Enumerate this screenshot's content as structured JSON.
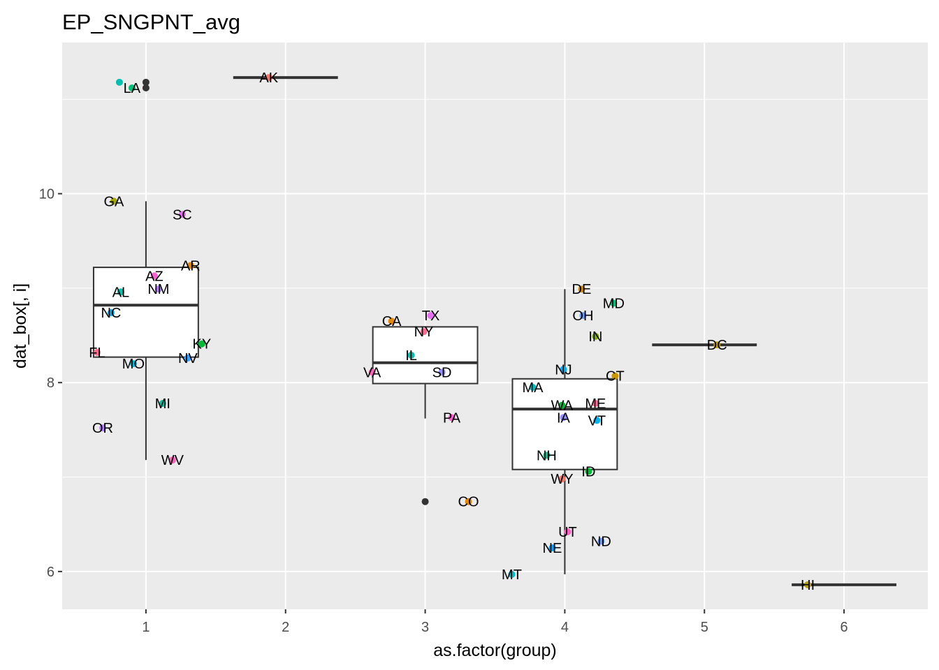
{
  "chart_data": {
    "type": "box",
    "title": "EP_SNGPNT_avg",
    "xlabel": "as.factor(group)",
    "ylabel": "dat_box[, i]",
    "xlim": [
      0.4,
      6.6
    ],
    "ylim": [
      5.6,
      11.6
    ],
    "x_ticks": [
      1,
      2,
      3,
      4,
      5,
      6
    ],
    "y_ticks": [
      6,
      8,
      10
    ],
    "grid": true,
    "legend": "none",
    "boxes": [
      {
        "group": 1,
        "q1": 8.27,
        "median": 8.82,
        "q3": 9.22,
        "whisker_low": 7.18,
        "whisker_high": 9.92,
        "outliers": [
          11.18,
          11.12
        ]
      },
      {
        "group": 2,
        "q1": 11.23,
        "median": 11.23,
        "q3": 11.23,
        "whisker_low": 11.23,
        "whisker_high": 11.23,
        "outliers": []
      },
      {
        "group": 3,
        "q1": 7.99,
        "median": 8.21,
        "q3": 8.59,
        "whisker_low": 7.62,
        "whisker_high": 8.59,
        "outliers": [
          6.74
        ]
      },
      {
        "group": 4,
        "q1": 7.08,
        "median": 7.72,
        "q3": 8.04,
        "whisker_low": 5.97,
        "whisker_high": 8.99,
        "outliers": []
      },
      {
        "group": 5,
        "q1": 8.4,
        "median": 8.4,
        "q3": 8.4,
        "whisker_low": 8.4,
        "whisker_high": 8.4,
        "outliers": []
      },
      {
        "group": 6,
        "q1": 5.86,
        "median": 5.86,
        "q3": 5.86,
        "whisker_low": 5.86,
        "whisker_high": 5.86,
        "outliers": []
      }
    ],
    "points": [
      {
        "label": "LA",
        "x": 0.9,
        "y": 11.12,
        "color": "#00BF7D"
      },
      {
        "label": "",
        "x": 0.81,
        "y": 11.18,
        "color": "#00BFB0"
      },
      {
        "label": "AK",
        "x": 1.88,
        "y": 11.23,
        "color": "#F8766D"
      },
      {
        "label": "GA",
        "x": 0.77,
        "y": 9.92,
        "color": "#A3A500"
      },
      {
        "label": "SC",
        "x": 1.26,
        "y": 9.78,
        "color": "#E76BF3"
      },
      {
        "label": "AR",
        "x": 1.32,
        "y": 9.24,
        "color": "#E58700"
      },
      {
        "label": "AZ",
        "x": 1.06,
        "y": 9.13,
        "color": "#FD61D1"
      },
      {
        "label": "AL",
        "x": 0.82,
        "y": 8.96,
        "color": "#00C0AF"
      },
      {
        "label": "NM",
        "x": 1.09,
        "y": 8.99,
        "color": "#B983FF"
      },
      {
        "label": "NC",
        "x": 0.75,
        "y": 8.74,
        "color": "#00B0F6"
      },
      {
        "label": "KY",
        "x": 1.4,
        "y": 8.41,
        "color": "#00BA38"
      },
      {
        "label": "FL",
        "x": 0.65,
        "y": 8.32,
        "color": "#FF6C91"
      },
      {
        "label": "NV",
        "x": 1.3,
        "y": 8.26,
        "color": "#35A2FF"
      },
      {
        "label": "MO",
        "x": 0.91,
        "y": 8.2,
        "color": "#00BCD8"
      },
      {
        "label": "MI",
        "x": 1.12,
        "y": 7.78,
        "color": "#00C1A3"
      },
      {
        "label": "OR",
        "x": 0.69,
        "y": 7.52,
        "color": "#B983FF"
      },
      {
        "label": "WV",
        "x": 1.19,
        "y": 7.18,
        "color": "#FF62BC"
      },
      {
        "label": "CA",
        "x": 2.76,
        "y": 8.65,
        "color": "#E58700"
      },
      {
        "label": "TX",
        "x": 3.04,
        "y": 8.71,
        "color": "#E76BF3"
      },
      {
        "label": "NY",
        "x": 2.99,
        "y": 8.54,
        "color": "#FF6C91"
      },
      {
        "label": "IL",
        "x": 2.9,
        "y": 8.29,
        "color": "#00C0AF"
      },
      {
        "label": "VA",
        "x": 2.62,
        "y": 8.11,
        "color": "#FF62BC"
      },
      {
        "label": "SD",
        "x": 3.12,
        "y": 8.11,
        "color": "#9590FF"
      },
      {
        "label": "PA",
        "x": 3.19,
        "y": 7.63,
        "color": "#FD61D1"
      },
      {
        "label": "CO",
        "x": 3.31,
        "y": 6.74,
        "color": "#E58700"
      },
      {
        "label": "DE",
        "x": 4.12,
        "y": 8.99,
        "color": "#D89000"
      },
      {
        "label": "MD",
        "x": 4.35,
        "y": 8.84,
        "color": "#00BF7D"
      },
      {
        "label": "OH",
        "x": 4.13,
        "y": 8.71,
        "color": "#619CFF"
      },
      {
        "label": "IN",
        "x": 4.22,
        "y": 8.49,
        "color": "#7CAE00"
      },
      {
        "label": "NJ",
        "x": 3.99,
        "y": 8.14,
        "color": "#00B0F6"
      },
      {
        "label": "CT",
        "x": 4.36,
        "y": 8.07,
        "color": "#C99800"
      },
      {
        "label": "MA",
        "x": 3.77,
        "y": 7.95,
        "color": "#00BFC4"
      },
      {
        "label": "WA",
        "x": 3.98,
        "y": 7.76,
        "color": "#00BA38"
      },
      {
        "label": "ME",
        "x": 4.22,
        "y": 7.78,
        "color": "#FF6A98"
      },
      {
        "label": "IA",
        "x": 3.99,
        "y": 7.63,
        "color": "#9590FF"
      },
      {
        "label": "VT",
        "x": 4.23,
        "y": 7.6,
        "color": "#00B4EF"
      },
      {
        "label": "NH",
        "x": 3.87,
        "y": 7.23,
        "color": "#00C08B"
      },
      {
        "label": "ID",
        "x": 4.17,
        "y": 7.06,
        "color": "#00BA38"
      },
      {
        "label": "WY",
        "x": 3.98,
        "y": 6.98,
        "color": "#F8766D"
      },
      {
        "label": "UT",
        "x": 4.02,
        "y": 6.42,
        "color": "#FF61C3"
      },
      {
        "label": "ND",
        "x": 4.26,
        "y": 6.32,
        "color": "#619CFF"
      },
      {
        "label": "NE",
        "x": 3.91,
        "y": 6.25,
        "color": "#00A9FF"
      },
      {
        "label": "MT",
        "x": 3.62,
        "y": 5.97,
        "color": "#00BFC4"
      },
      {
        "label": "DC",
        "x": 5.09,
        "y": 8.4,
        "color": "#C49A00"
      },
      {
        "label": "HI",
        "x": 5.74,
        "y": 5.86,
        "color": "#B79F00"
      }
    ]
  },
  "colors": {
    "panel_background": "#EBEBEB",
    "grid_major": "#FFFFFF",
    "box_line": "#333333",
    "outlier": "#333333"
  }
}
